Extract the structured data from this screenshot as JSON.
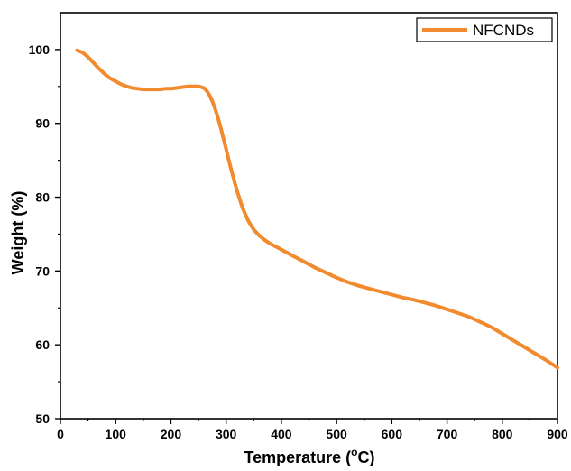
{
  "chart_data": {
    "type": "line",
    "title": "",
    "xlabel": "Temperature (°C)",
    "xlabel_parts": {
      "before": "Temperature (",
      "sup": "o",
      "after": "C)"
    },
    "ylabel": "Weight (%)",
    "xlim": [
      0,
      900
    ],
    "ylim": [
      50,
      105
    ],
    "xticks": [
      0,
      100,
      200,
      300,
      400,
      500,
      600,
      700,
      800,
      900
    ],
    "yticks": [
      50,
      60,
      70,
      80,
      90,
      100
    ],
    "grid": false,
    "legend_position": "top-right",
    "series": [
      {
        "name": "NFCNDs",
        "color": "#f28a2e",
        "x": [
          30,
          40,
          50,
          60,
          70,
          80,
          90,
          100,
          110,
          120,
          130,
          140,
          150,
          160,
          170,
          180,
          190,
          200,
          210,
          220,
          230,
          240,
          250,
          255,
          260,
          265,
          270,
          275,
          280,
          285,
          290,
          295,
          300,
          305,
          310,
          320,
          330,
          340,
          350,
          360,
          370,
          380,
          390,
          400,
          420,
          440,
          460,
          480,
          500,
          520,
          540,
          560,
          580,
          600,
          620,
          640,
          660,
          680,
          700,
          720,
          740,
          760,
          780,
          800,
          820,
          840,
          860,
          880,
          900
        ],
        "y": [
          99.9,
          99.6,
          99.0,
          98.2,
          97.4,
          96.7,
          96.1,
          95.7,
          95.3,
          95.0,
          94.8,
          94.7,
          94.6,
          94.6,
          94.6,
          94.6,
          94.7,
          94.7,
          94.8,
          94.9,
          95.0,
          95.0,
          95.0,
          94.9,
          94.8,
          94.4,
          93.8,
          93.0,
          92.0,
          90.8,
          89.5,
          88.0,
          86.5,
          85.0,
          83.5,
          80.8,
          78.5,
          76.8,
          75.6,
          74.8,
          74.2,
          73.7,
          73.3,
          72.9,
          72.1,
          71.3,
          70.5,
          69.8,
          69.1,
          68.5,
          68.0,
          67.6,
          67.2,
          66.8,
          66.4,
          66.1,
          65.7,
          65.3,
          64.8,
          64.3,
          63.8,
          63.1,
          62.4,
          61.5,
          60.6,
          59.7,
          58.8,
          57.9,
          56.9
        ]
      }
    ]
  }
}
